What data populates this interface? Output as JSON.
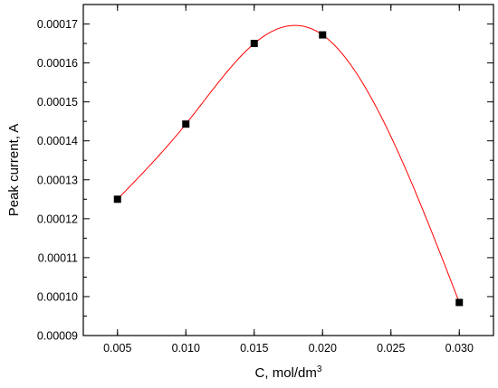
{
  "chart_data": {
    "type": "scatter",
    "title": "",
    "xlabel": "C, mol/dm",
    "xlabel_superscript": "3",
    "ylabel": "Peak current, A",
    "xlim": [
      0.0025,
      0.0325
    ],
    "ylim": [
      9e-05,
      0.000175
    ],
    "x_ticks": [
      "0.005",
      "0.010",
      "0.015",
      "0.020",
      "0.025",
      "0.030"
    ],
    "x_tick_values": [
      0.005,
      0.01,
      0.015,
      0.02,
      0.025,
      0.03
    ],
    "y_ticks": [
      "0.00009",
      "0.00010",
      "0.00011",
      "0.00012",
      "0.00013",
      "0.00014",
      "0.00015",
      "0.00016",
      "0.00017"
    ],
    "y_tick_values": [
      9e-05,
      0.0001,
      0.00011,
      0.00012,
      0.00013,
      0.00014,
      0.00015,
      0.00016,
      0.00017
    ],
    "series": [
      {
        "marker": "square",
        "color": "#000000",
        "x": [
          0.005,
          0.01,
          0.015,
          0.02,
          0.03
        ],
        "y": [
          0.000125,
          0.0001443,
          0.000165,
          0.0001672,
          9.85e-05
        ]
      }
    ],
    "fit_curve": {
      "type": "smooth-spline",
      "color": "#ff0000"
    },
    "grid": false,
    "legend": "none"
  }
}
